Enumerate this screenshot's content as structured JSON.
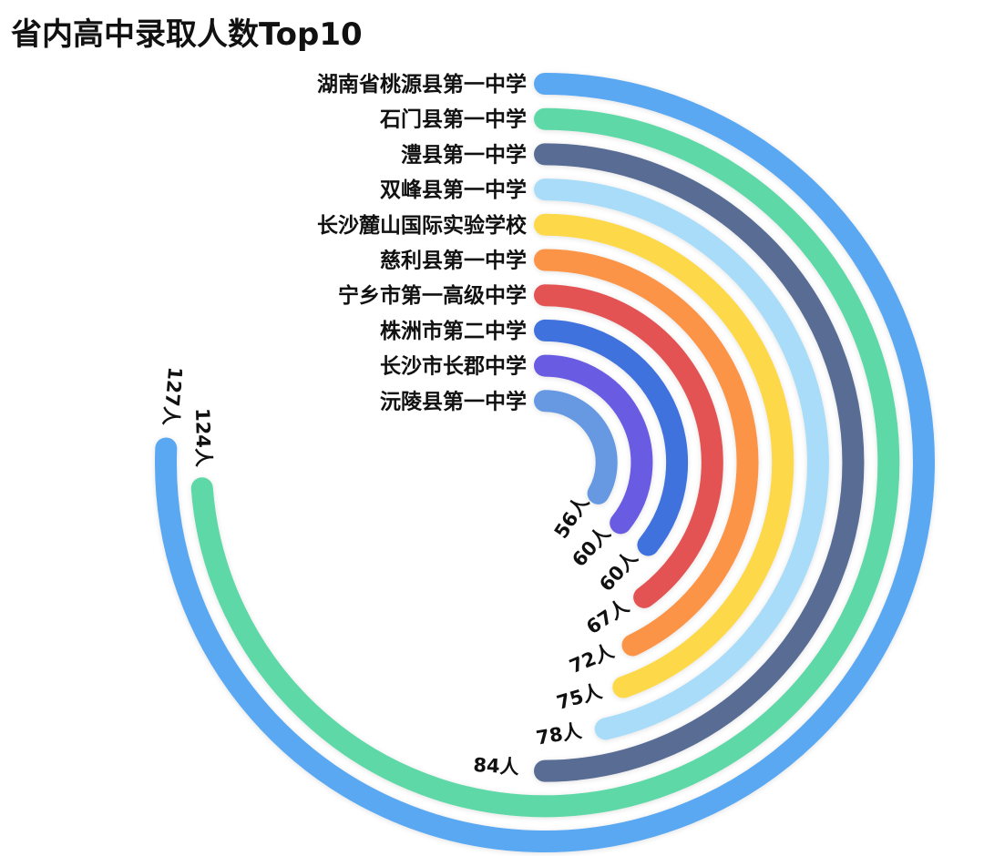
{
  "title": "省内高中录取人数Top10",
  "chart_data": {
    "type": "radial-bar",
    "title": "省内高中录取人数Top10",
    "unit": "人",
    "max_value_full_circle": 168,
    "categories": [
      "湖南省桃源县第一中学",
      "石门县第一中学",
      "澧县第一中学",
      "双峰县第一中学",
      "长沙麓山国际实验学校",
      "慈利县第一中学",
      "宁乡市第一高级中学",
      "株洲市第二中学",
      "长沙市长郡中学",
      "沅陵县第一中学"
    ],
    "values": [
      127,
      124,
      84,
      78,
      75,
      72,
      67,
      60,
      60,
      56
    ],
    "value_labels": [
      "127人",
      "124人",
      "84人",
      "78人",
      "75人",
      "72人",
      "67人",
      "60人",
      "60人",
      "56人"
    ],
    "colors": [
      "#5AA8F2",
      "#5ED8A8",
      "#586C94",
      "#A8DCF8",
      "#FDD84A",
      "#FB9447",
      "#E45352",
      "#3F72DE",
      "#6B5BE2",
      "#6699E2"
    ],
    "legend": "none",
    "grid": false
  }
}
